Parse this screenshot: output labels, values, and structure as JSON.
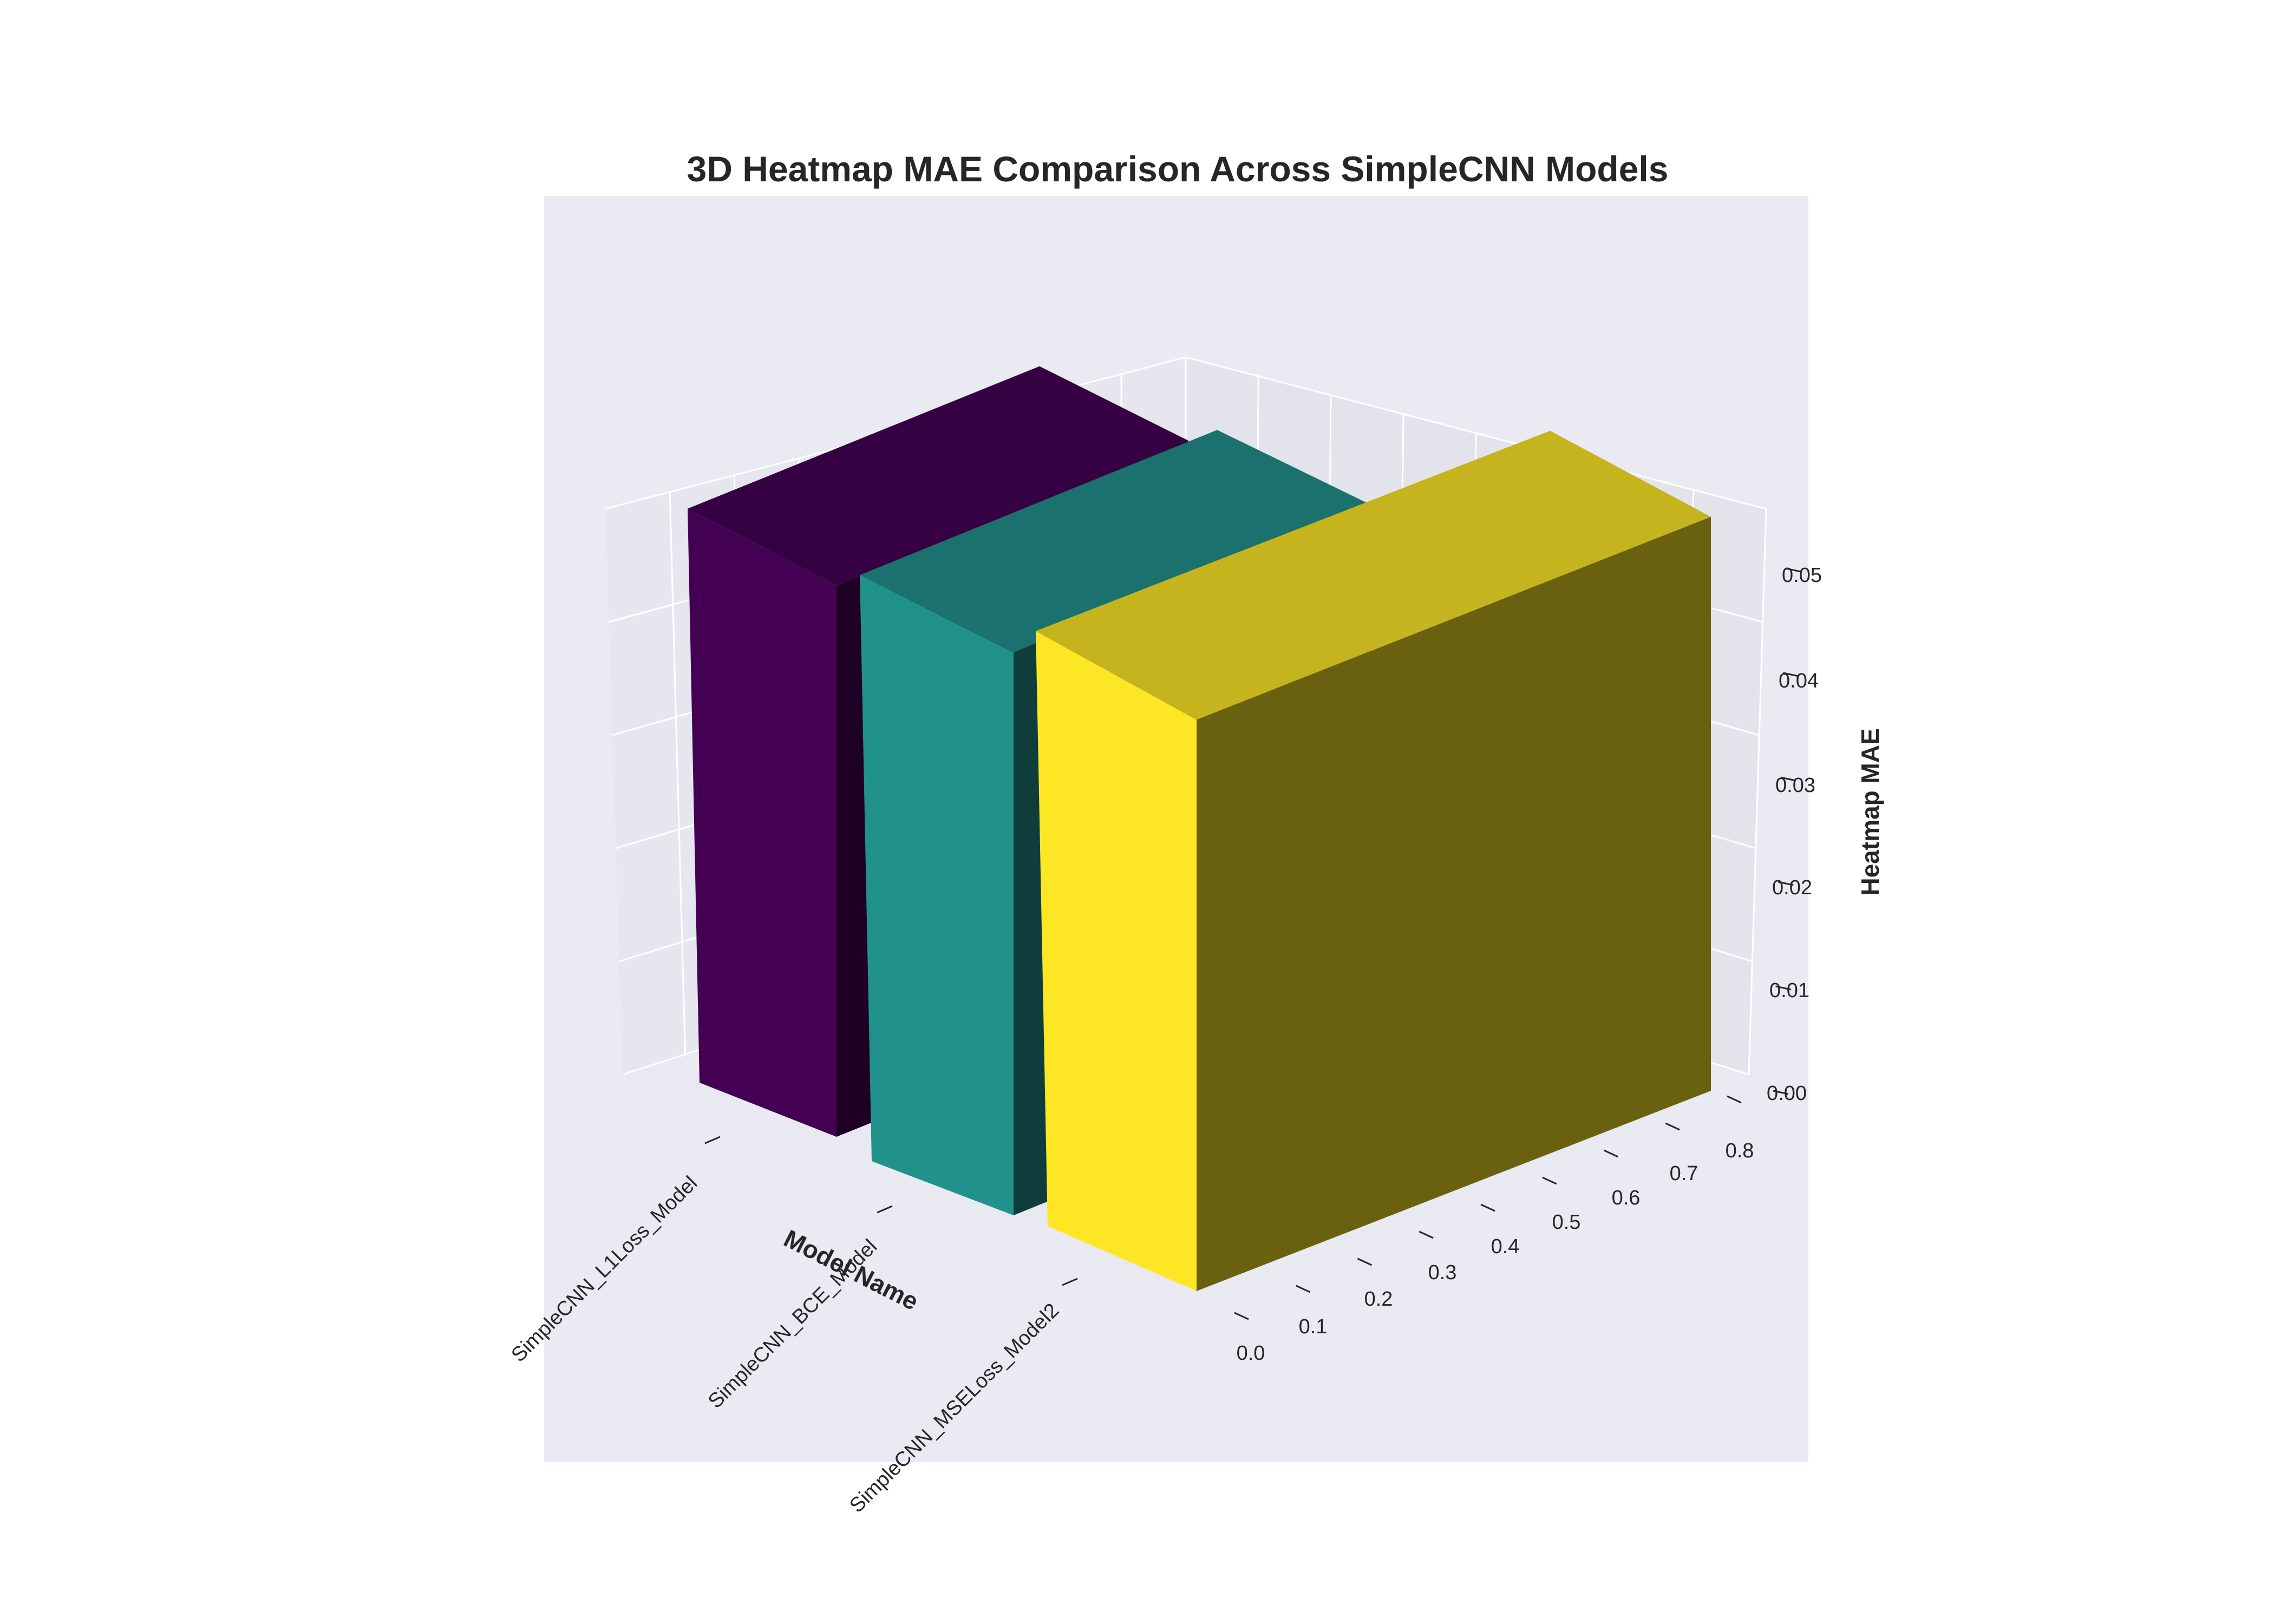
{
  "chart_data": {
    "type": "bar",
    "title": "3D Heatmap MAE Comparison Across SimpleCNN Models",
    "xlabel": "Model Name",
    "ylabel": "",
    "zlabel": "Heatmap MAE",
    "categories": [
      "SimpleCNN_L1Loss_Model",
      "SimpleCNN_BCE_Model",
      "SimpleCNN_MSELoss_Model2"
    ],
    "values": [
      0.0504,
      0.0506,
      0.0508
    ],
    "colors": [
      "#440154",
      "#21918c",
      "#fde725"
    ],
    "bar_depth": [
      0.0,
      0.8
    ],
    "z_ticks": [
      "0.00",
      "0.01",
      "0.02",
      "0.03",
      "0.04",
      "0.05"
    ],
    "y_ticks": [
      "0.0",
      "0.1",
      "0.2",
      "0.3",
      "0.4",
      "0.5",
      "0.6",
      "0.7",
      "0.8"
    ],
    "zlim": [
      0,
      0.05
    ],
    "grid": true,
    "background": "#eaeaf2"
  }
}
